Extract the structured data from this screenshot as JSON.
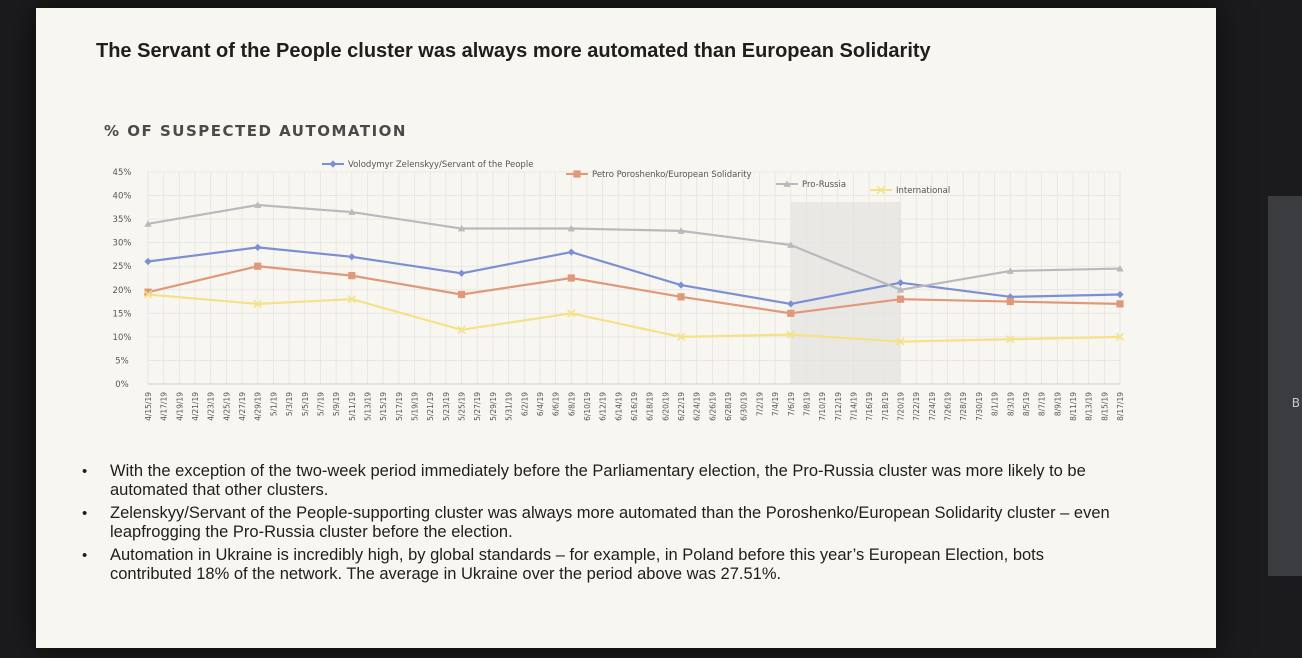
{
  "title": "The Servant of the People cluster was always more automated than European Solidarity",
  "chart_heading": "% OF SUSPECTED AUTOMATION",
  "chart_data": {
    "type": "line",
    "ylim": [
      0,
      45
    ],
    "y_ticks": [
      "0%",
      "5%",
      "10%",
      "15%",
      "20%",
      "25%",
      "30%",
      "35%",
      "40%",
      "45%"
    ],
    "x_ticks": [
      "4/15/19",
      "4/17/19",
      "4/19/19",
      "4/21/19",
      "4/23/19",
      "4/25/19",
      "4/27/19",
      "4/29/19",
      "5/1/19",
      "5/3/19",
      "5/5/19",
      "5/7/19",
      "5/9/19",
      "5/11/19",
      "5/13/19",
      "5/15/19",
      "5/17/19",
      "5/19/19",
      "5/21/19",
      "5/23/19",
      "5/25/19",
      "5/27/19",
      "5/29/19",
      "5/31/19",
      "6/2/19",
      "6/4/19",
      "6/6/19",
      "6/8/19",
      "6/10/19",
      "6/12/19",
      "6/14/19",
      "6/16/19",
      "6/18/19",
      "6/20/19",
      "6/22/19",
      "6/24/19",
      "6/26/19",
      "6/28/19",
      "6/30/19",
      "7/2/19",
      "7/4/19",
      "7/6/19",
      "7/8/19",
      "7/10/19",
      "7/12/19",
      "7/14/19",
      "7/16/19",
      "7/18/19",
      "7/20/19",
      "7/22/19",
      "7/24/19",
      "7/26/19",
      "7/28/19",
      "7/30/19",
      "8/1/19",
      "8/3/19",
      "8/5/19",
      "8/7/19",
      "8/9/19",
      "8/11/19",
      "8/13/19",
      "8/15/19",
      "8/17/19"
    ],
    "grid": true,
    "legend_position": "top",
    "highlight_range": [
      "7/6/19",
      "7/20/19"
    ],
    "series": [
      {
        "name": "Volodymyr Zelenskyy/Servant of the People",
        "color": "#7b8fd4",
        "marker": "diamond",
        "x": [
          "4/15/19",
          "4/29/19",
          "5/11/19",
          "5/25/19",
          "6/8/19",
          "6/22/19",
          "7/6/19",
          "7/20/19",
          "8/3/19",
          "8/17/19"
        ],
        "values": [
          26,
          29,
          27,
          23.5,
          28,
          21,
          17,
          21.5,
          18.5,
          19
        ]
      },
      {
        "name": "Petro Poroshenko/European Solidarity",
        "color": "#e0987a",
        "marker": "square",
        "x": [
          "4/15/19",
          "4/29/19",
          "5/11/19",
          "5/25/19",
          "6/8/19",
          "6/22/19",
          "7/6/19",
          "7/20/19",
          "8/3/19",
          "8/17/19"
        ],
        "values": [
          19.5,
          25,
          23,
          19,
          22.5,
          18.5,
          15,
          18,
          17.5,
          17
        ]
      },
      {
        "name": "Pro-Russia",
        "color": "#b9b9bd",
        "marker": "triangle",
        "x": [
          "4/15/19",
          "4/29/19",
          "5/11/19",
          "5/25/19",
          "6/8/19",
          "6/22/19",
          "7/6/19",
          "7/20/19",
          "8/3/19",
          "8/17/19"
        ],
        "values": [
          34,
          38,
          36.5,
          33,
          33,
          32.5,
          29.5,
          20,
          24,
          24.5
        ]
      },
      {
        "name": "International",
        "color": "#f5e187",
        "marker": "x",
        "x": [
          "4/15/19",
          "4/29/19",
          "5/11/19",
          "5/25/19",
          "6/8/19",
          "6/22/19",
          "7/6/19",
          "7/20/19",
          "8/3/19",
          "8/17/19"
        ],
        "values": [
          19,
          17,
          18,
          11.5,
          15,
          10,
          10.5,
          9,
          9.5,
          10
        ]
      }
    ]
  },
  "bullets": [
    "With the exception of the two-week period immediately before the Parliamentary election, the Pro-Russia cluster was more likely to be automated that other clusters.",
    "Zelenskyy/Servant of the People-supporting cluster was always more automated than the Poroshenko/European Solidarity cluster – even leapfrogging the Pro-Russia cluster before the election.",
    "Automation in Ukraine is incredibly high, by global standards – for example, in Poland before this year’s European Election, bots contributed 18% of the network. The average in Ukraine over the period above was 27.51%."
  ],
  "edge_text": "B"
}
